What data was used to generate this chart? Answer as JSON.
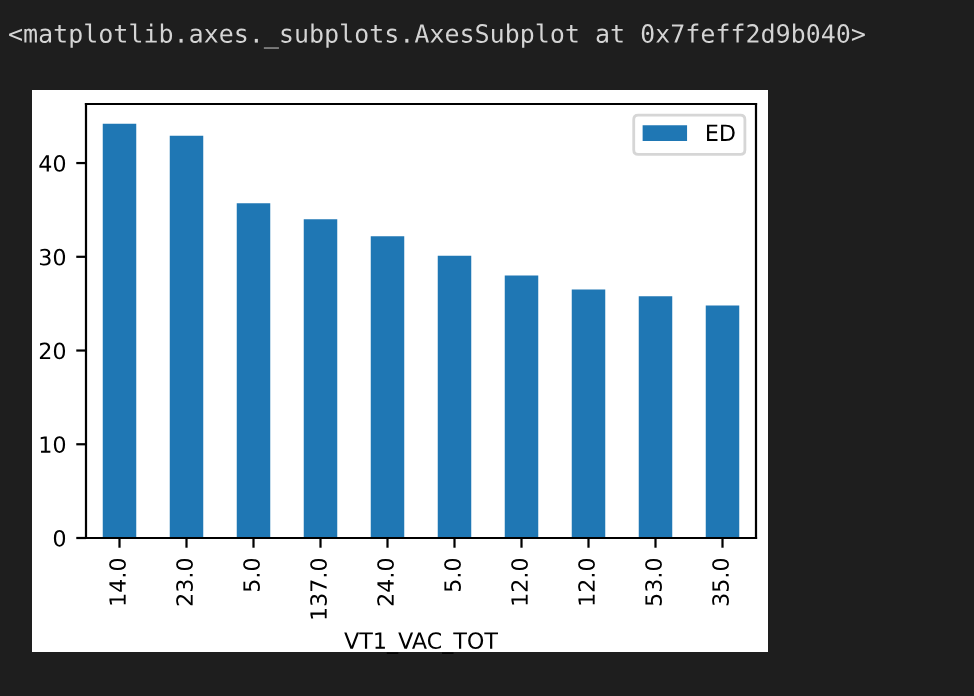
{
  "chart_data": {
    "type": "bar",
    "title": "<matplotlib.axes._subplots.AxesSubplot at 0x7feff2d9b040>",
    "xlabel": "VT1_VAC_TOT",
    "categories": [
      "14.0",
      "23.0",
      "5.0",
      "137.0",
      "24.0",
      "5.0",
      "12.0",
      "12.0",
      "53.0",
      "35.0"
    ],
    "series": [
      {
        "name": "ED",
        "color": "#1f77b4",
        "values": [
          44.2,
          42.9,
          35.7,
          34.0,
          32.2,
          30.1,
          28.0,
          26.5,
          25.8,
          24.8
        ]
      }
    ],
    "ylim": [
      0,
      46.3
    ],
    "yticks": [
      0,
      10,
      20,
      30,
      40
    ],
    "grid": false,
    "legend": "top right"
  }
}
